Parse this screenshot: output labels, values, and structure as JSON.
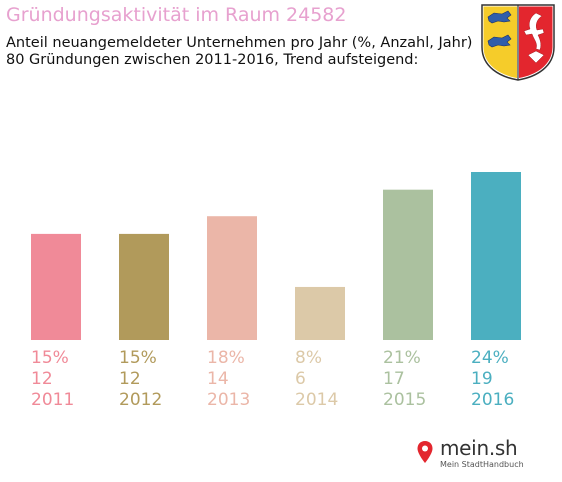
{
  "header": {
    "title": "Gründungsaktivität im Raum 24582",
    "subtitle_line1": "Anteil neuangemeldeter Unternehmen pro Jahr (%, Anzahl, Jahr)",
    "subtitle_line2": "80 Gründungen zwischen 2011-2016, Trend aufsteigend:"
  },
  "crest": {
    "icon": "schleswig-holstein-coat-of-arms-icon"
  },
  "chart_data": {
    "type": "bar",
    "title": "Gründungsaktivität im Raum 24582",
    "categories": [
      "2011",
      "2012",
      "2013",
      "2014",
      "2015",
      "2016"
    ],
    "values": [
      12,
      12,
      14,
      6,
      17,
      19
    ],
    "percent_labels": [
      "15%",
      "15%",
      "18%",
      "8%",
      "21%",
      "24%"
    ],
    "count_labels": [
      "12",
      "12",
      "14",
      "6",
      "17",
      "19"
    ],
    "colors": [
      "#f08a98",
      "#b19a5b",
      "#ebb6a8",
      "#dcc9a8",
      "#abc19f",
      "#4bafc0"
    ],
    "xlabel": "",
    "ylabel": "",
    "ylim": [
      0,
      19
    ],
    "grid": false,
    "legend": "none"
  },
  "logo": {
    "text": "mein.sh",
    "subtext": "Mein StadtHandbuch",
    "icon": "map-pin-icon"
  }
}
